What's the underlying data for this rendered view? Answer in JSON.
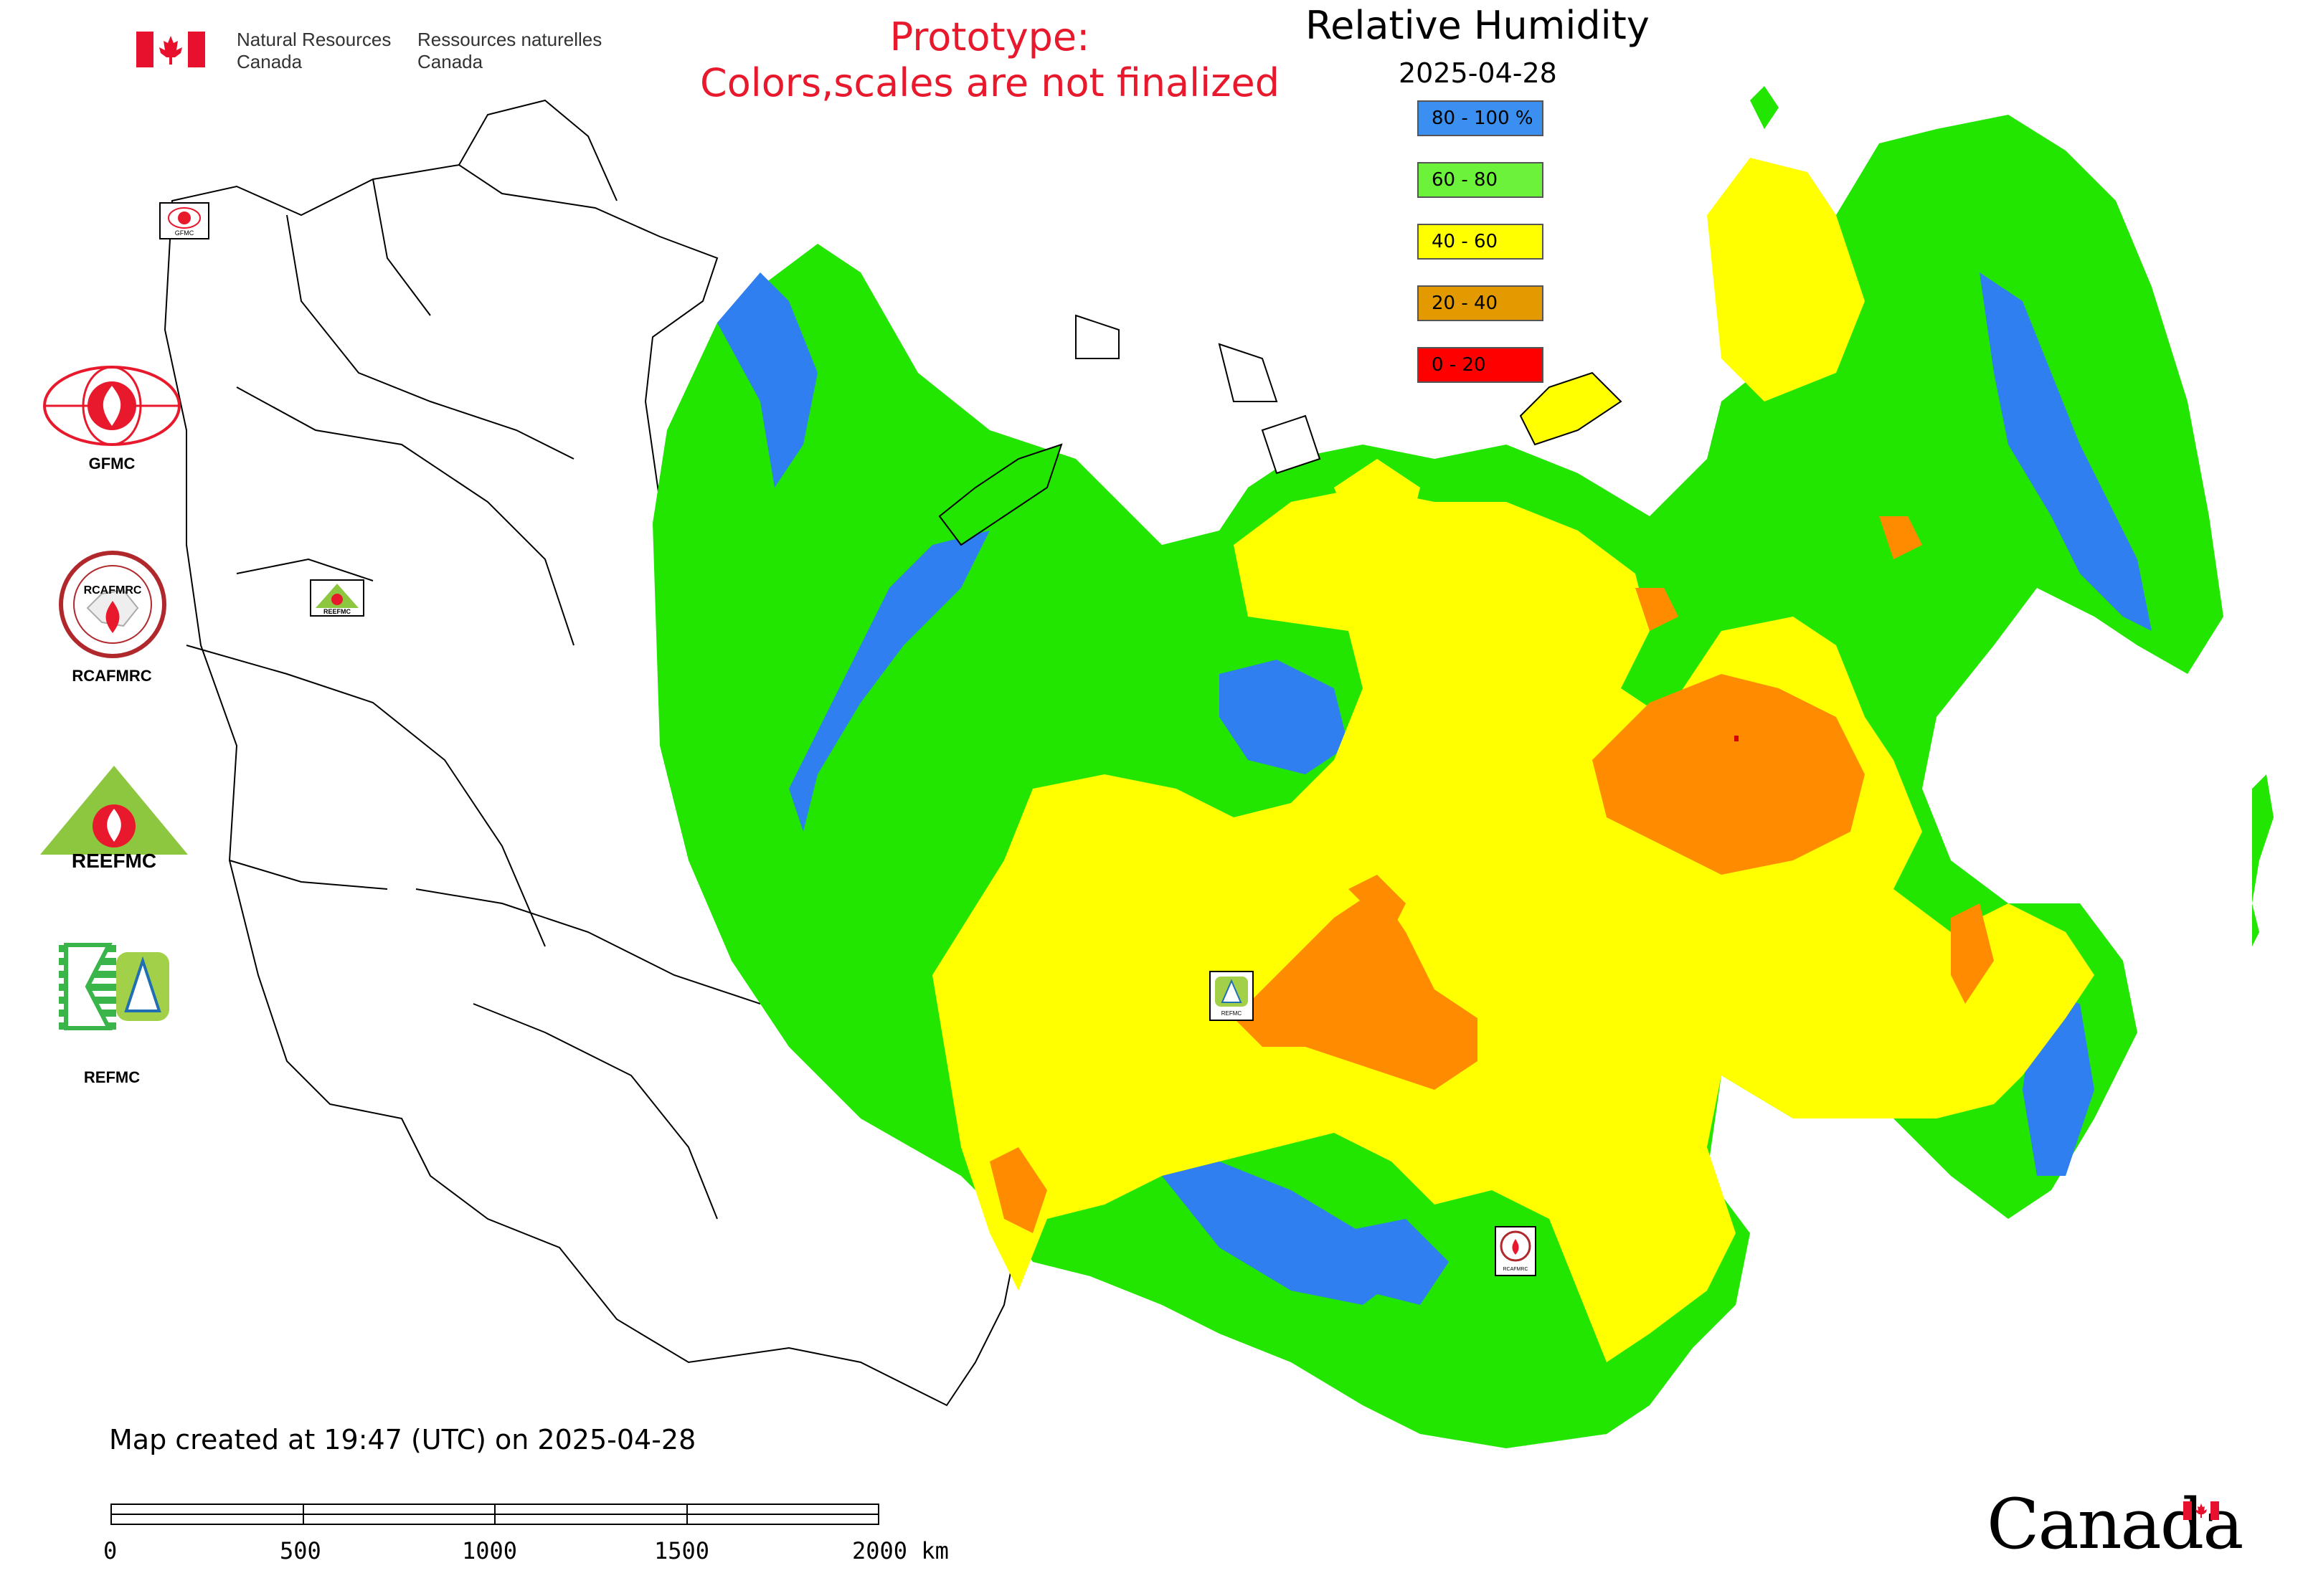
{
  "header": {
    "org_en_line1": "Natural Resources",
    "org_en_line2": "Canada",
    "org_fr_line1": "Ressources naturelles",
    "org_fr_line2": "Canada"
  },
  "prototype_notice": {
    "line1": "Prototype:",
    "line2": "Colors,scales are not finalized"
  },
  "map": {
    "title": "Relative Humidity",
    "date": "2025-04-28",
    "legend": [
      {
        "label": "80 - 100 %",
        "color": "#3a8ff0"
      },
      {
        "label": "60 - 80",
        "color": "#6cf23a"
      },
      {
        "label": "40 - 60",
        "color": "#ffff00"
      },
      {
        "label": "20 - 40",
        "color": "#e39a00"
      },
      {
        "label": "0 - 20",
        "color": "#ff0000"
      }
    ],
    "fill_colors": {
      "blue": "#2f7ff0",
      "green": "#22e600",
      "yellow": "#ffff00",
      "orange": "#ff8c00",
      "red": "#d40000"
    }
  },
  "side_logos": [
    {
      "label": "GFMC",
      "icon": "gfmc-logo"
    },
    {
      "label": "RCAFMRC",
      "icon": "rcafmrc-logo"
    },
    {
      "label": "",
      "icon": "reefmc-logo",
      "logo_text": "REEFMC"
    },
    {
      "label": "REFMC",
      "icon": "refmc-logo"
    }
  ],
  "map_markers": [
    {
      "label": "GFMC",
      "icon": "gfmc-marker"
    },
    {
      "label": "REEFMC",
      "icon": "reefmc-marker"
    },
    {
      "label": "REFMC",
      "icon": "refmc-marker"
    },
    {
      "label": "RCAFMRC",
      "icon": "rcafmrc-marker"
    }
  ],
  "footer": {
    "created": "Map created at 19:47 (UTC) on 2025-04-28",
    "scale_labels": [
      "0",
      "500",
      "1000",
      "1500",
      "2000 km"
    ]
  },
  "wordmark": "Canada",
  "flag_colors": {
    "red": "#e8112d"
  }
}
